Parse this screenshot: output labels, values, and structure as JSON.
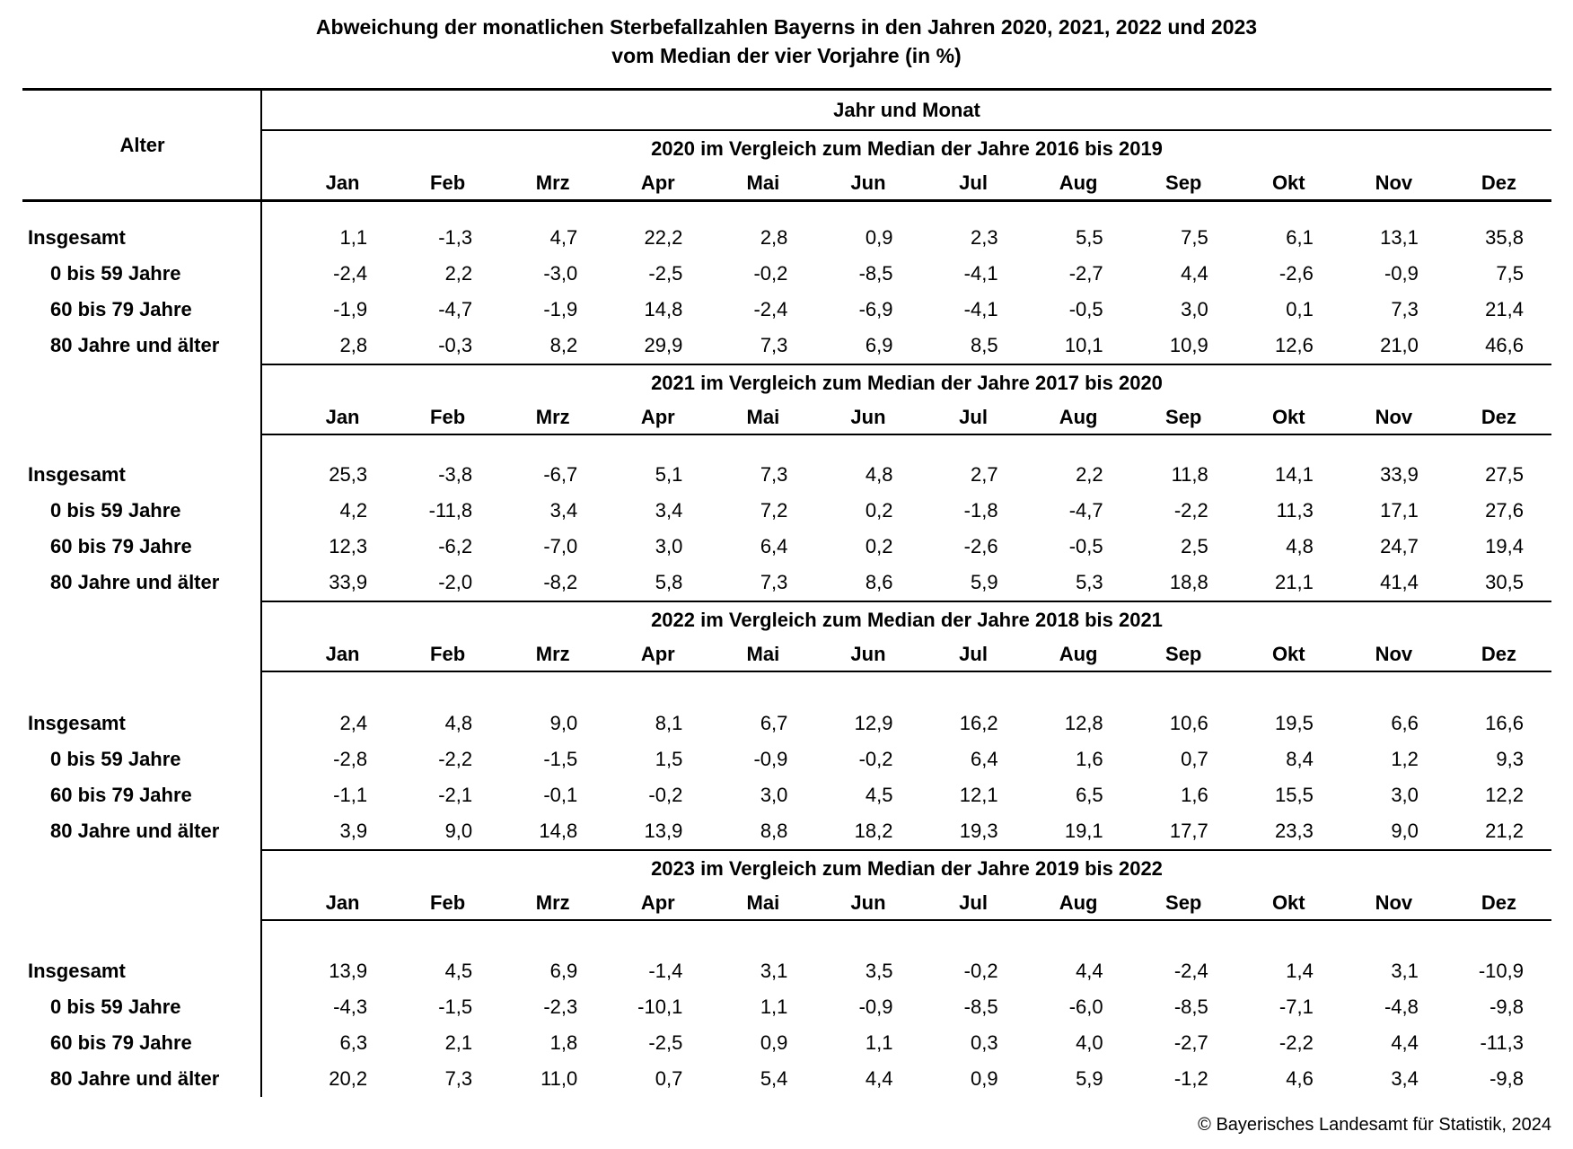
{
  "title": {
    "line1": "Abweichung der monatlichen Sterbefallzahlen Bayerns in den Jahren 2020, 2021, 2022 und 2023",
    "line2": "vom Median der vier Vorjahre (in %)"
  },
  "footer": "© Bayerisches Landesamt für Statistik, 2024",
  "chart_data": {
    "type": "table",
    "title": "Abweichung der monatlichen Sterbefallzahlen Bayerns in den Jahren 2020, 2021, 2022 und 2023 vom Median der vier Vorjahre (in %)",
    "row_group_label": "Alter",
    "column_group_label": "Jahr und Monat",
    "columns": [
      "Jan",
      "Feb",
      "Mrz",
      "Apr",
      "Mai",
      "Jun",
      "Jul",
      "Aug",
      "Sep",
      "Okt",
      "Nov",
      "Dez"
    ],
    "row_labels": [
      "Insgesamt",
      "0 bis 59 Jahre",
      "60 bis 79 Jahre",
      "80 Jahre und älter"
    ],
    "sections": [
      {
        "title": "2020 im Vergleich zum Median der Jahre 2016 bis 2019",
        "rows": [
          {
            "label": "Insgesamt",
            "values": [
              "1,1",
              "-1,3",
              "4,7",
              "22,2",
              "2,8",
              "0,9",
              "2,3",
              "5,5",
              "7,5",
              "6,1",
              "13,1",
              "35,8"
            ]
          },
          {
            "label": "0 bis 59 Jahre",
            "values": [
              "-2,4",
              "2,2",
              "-3,0",
              "-2,5",
              "-0,2",
              "-8,5",
              "-4,1",
              "-2,7",
              "4,4",
              "-2,6",
              "-0,9",
              "7,5"
            ]
          },
          {
            "label": "60 bis 79 Jahre",
            "values": [
              "-1,9",
              "-4,7",
              "-1,9",
              "14,8",
              "-2,4",
              "-6,9",
              "-4,1",
              "-0,5",
              "3,0",
              "0,1",
              "7,3",
              "21,4"
            ]
          },
          {
            "label": "80 Jahre und älter",
            "values": [
              "2,8",
              "-0,3",
              "8,2",
              "29,9",
              "7,3",
              "6,9",
              "8,5",
              "10,1",
              "10,9",
              "12,6",
              "21,0",
              "46,6"
            ]
          }
        ]
      },
      {
        "title": "2021 im Vergleich zum Median der Jahre 2017 bis 2020",
        "rows": [
          {
            "label": "Insgesamt",
            "values": [
              "25,3",
              "-3,8",
              "-6,7",
              "5,1",
              "7,3",
              "4,8",
              "2,7",
              "2,2",
              "11,8",
              "14,1",
              "33,9",
              "27,5"
            ]
          },
          {
            "label": "0 bis 59 Jahre",
            "values": [
              "4,2",
              "-11,8",
              "3,4",
              "3,4",
              "7,2",
              "0,2",
              "-1,8",
              "-4,7",
              "-2,2",
              "11,3",
              "17,1",
              "27,6"
            ]
          },
          {
            "label": "60 bis 79 Jahre",
            "values": [
              "12,3",
              "-6,2",
              "-7,0",
              "3,0",
              "6,4",
              "0,2",
              "-2,6",
              "-0,5",
              "2,5",
              "4,8",
              "24,7",
              "19,4"
            ]
          },
          {
            "label": "80 Jahre und älter",
            "values": [
              "33,9",
              "-2,0",
              "-8,2",
              "5,8",
              "7,3",
              "8,6",
              "5,9",
              "5,3",
              "18,8",
              "21,1",
              "41,4",
              "30,5"
            ]
          }
        ]
      },
      {
        "title": "2022 im Vergleich zum Median der Jahre 2018 bis 2021",
        "rows": [
          {
            "label": "Insgesamt",
            "values": [
              "2,4",
              "4,8",
              "9,0",
              "8,1",
              "6,7",
              "12,9",
              "16,2",
              "12,8",
              "10,6",
              "19,5",
              "6,6",
              "16,6"
            ]
          },
          {
            "label": "0 bis 59 Jahre",
            "values": [
              "-2,8",
              "-2,2",
              "-1,5",
              "1,5",
              "-0,9",
              "-0,2",
              "6,4",
              "1,6",
              "0,7",
              "8,4",
              "1,2",
              "9,3"
            ]
          },
          {
            "label": "60 bis 79 Jahre",
            "values": [
              "-1,1",
              "-2,1",
              "-0,1",
              "-0,2",
              "3,0",
              "4,5",
              "12,1",
              "6,5",
              "1,6",
              "15,5",
              "3,0",
              "12,2"
            ]
          },
          {
            "label": "80 Jahre und älter",
            "values": [
              "3,9",
              "9,0",
              "14,8",
              "13,9",
              "8,8",
              "18,2",
              "19,3",
              "19,1",
              "17,7",
              "23,3",
              "9,0",
              "21,2"
            ]
          }
        ]
      },
      {
        "title": "2023 im Vergleich zum Median der Jahre 2019 bis 2022",
        "rows": [
          {
            "label": "Insgesamt",
            "values": [
              "13,9",
              "4,5",
              "6,9",
              "-1,4",
              "3,1",
              "3,5",
              "-0,2",
              "4,4",
              "-2,4",
              "1,4",
              "3,1",
              "-10,9"
            ]
          },
          {
            "label": "0 bis 59 Jahre",
            "values": [
              "-4,3",
              "-1,5",
              "-2,3",
              "-10,1",
              "1,1",
              "-0,9",
              "-8,5",
              "-6,0",
              "-8,5",
              "-7,1",
              "-4,8",
              "-9,8"
            ]
          },
          {
            "label": "60 bis 79 Jahre",
            "values": [
              "6,3",
              "2,1",
              "1,8",
              "-2,5",
              "0,9",
              "1,1",
              "0,3",
              "4,0",
              "-2,7",
              "-2,2",
              "4,4",
              "-11,3"
            ]
          },
          {
            "label": "80 Jahre und älter",
            "values": [
              "20,2",
              "7,3",
              "11,0",
              "0,7",
              "5,4",
              "4,4",
              "0,9",
              "5,9",
              "-1,2",
              "4,6",
              "3,4",
              "-9,8"
            ]
          }
        ]
      }
    ]
  }
}
